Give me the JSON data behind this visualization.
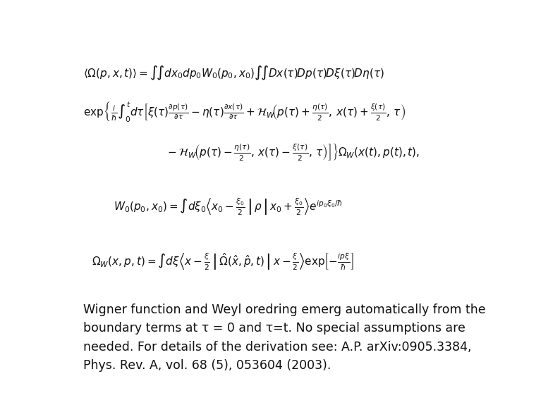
{
  "background_color": "#ffffff",
  "fig_width": 7.94,
  "fig_height": 5.95,
  "dpi": 100,
  "eq_fontsize": 11,
  "caption_fontsize": 12.5,
  "text_color": "#111111",
  "caption": "Wigner function and Weyl oredring emerg automatically from the\nboundary terms at τ = 0 and τ=t. No special assumptions are\nneeded. For details of the derivation see: A.P. arXiv:0905.3384,\nPhys. Rev. A, vol. 68 (5), 053604 (2003)."
}
